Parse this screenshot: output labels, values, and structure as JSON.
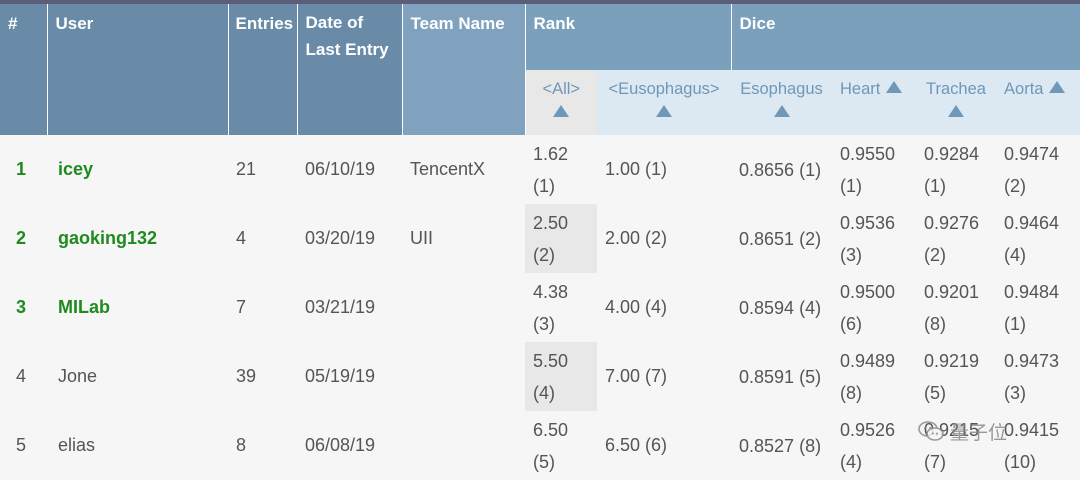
{
  "table": {
    "headers": {
      "num": "#",
      "user": "User",
      "entries": "Entries",
      "date": "Date of Last Entry",
      "team": "Team Name",
      "rank": "Rank",
      "dice": "Dice"
    },
    "subheaders": {
      "rank_all": "<All>",
      "rank_eso": "<Eusophagus>",
      "esophagus": "Esophagus",
      "heart": "Heart",
      "trachea": "Trachea",
      "aorta": "Aorta"
    },
    "rows": [
      {
        "num": "1",
        "user": "icey",
        "entries": "21",
        "date": "06/10/19",
        "team": "TencentX",
        "rank_all": "1.62 (1)",
        "rank_eso": "1.00 (1)",
        "esophagus": "0.8656 (1)",
        "heart": "0.9550 (1)",
        "trachea": "0.9284 (1)",
        "aorta": "0.9474 (2)"
      },
      {
        "num": "2",
        "user": "gaoking132",
        "entries": "4",
        "date": "03/20/19",
        "team": "UII",
        "rank_all": "2.50 (2)",
        "rank_eso": "2.00 (2)",
        "esophagus": "0.8651 (2)",
        "heart": "0.9536 (3)",
        "trachea": "0.9276 (2)",
        "aorta": "0.9464 (4)"
      },
      {
        "num": "3",
        "user": "MILab",
        "entries": "7",
        "date": "03/21/19",
        "team": "",
        "rank_all": "4.38 (3)",
        "rank_eso": "4.00 (4)",
        "esophagus": "0.8594 (4)",
        "heart": "0.9500 (6)",
        "trachea": "0.9201 (8)",
        "aorta": "0.9484 (1)"
      },
      {
        "num": "4",
        "user": "Jone",
        "entries": "39",
        "date": "05/19/19",
        "team": "",
        "rank_all": "5.50 (4)",
        "rank_eso": "7.00 (7)",
        "esophagus": "0.8591 (5)",
        "heart": "0.9489 (8)",
        "trachea": "0.9219 (5)",
        "aorta": "0.9473 (3)"
      },
      {
        "num": "5",
        "user": "elias",
        "entries": "8",
        "date": "06/08/19",
        "team": "",
        "rank_all": "6.50 (5)",
        "rank_eso": "6.50 (6)",
        "esophagus": "0.8527 (8)",
        "heart": "0.9526 (4)",
        "trachea": "0.9215 (7)",
        "aorta": "0.9415 (10)"
      }
    ]
  },
  "watermark": {
    "text": "量子位",
    "icon": "wechat-icon"
  },
  "colors": {
    "header_dark": "#6a8ba8",
    "header_sub_bg": "#dce8f2",
    "accent_green": "#1f8a1f",
    "shade": "#e8e8e8"
  }
}
